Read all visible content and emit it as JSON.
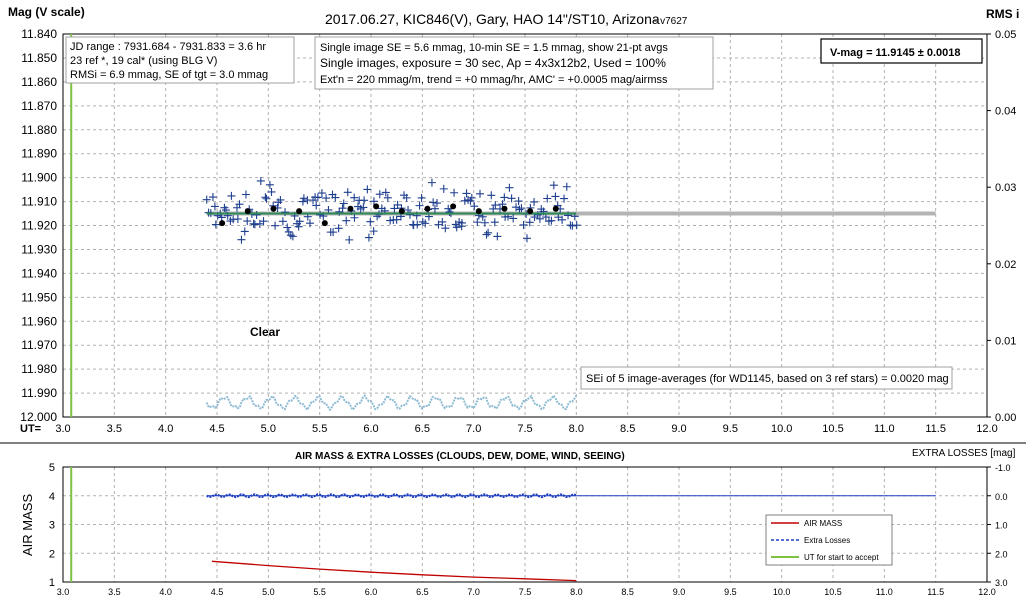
{
  "chart_data": [
    {
      "type": "scatter",
      "title": "2017.06.27,  KIC846(V),  Gary,  HAO  14\"/ST10, Arizona",
      "title_suffix": "- v7627",
      "ylabel": "Mag (V scale)",
      "y2label": "RMS i",
      "xlabel": "UT=",
      "xlim": [
        3.0,
        12.0
      ],
      "ylim": [
        11.84,
        12.0
      ],
      "y_inverted": true,
      "y2lim": [
        0.0,
        0.05
      ],
      "x_ticks": [
        "3.0",
        "3.5",
        "4.0",
        "4.5",
        "5.0",
        "5.5",
        "6.0",
        "6.5",
        "7.0",
        "7.5",
        "8.0",
        "8.5",
        "9.0",
        "9.5",
        "10.0",
        "10.5",
        "11.0",
        "11.5",
        "12.0"
      ],
      "y_ticks": [
        "11.840",
        "11.850",
        "11.860",
        "11.870",
        "11.880",
        "11.890",
        "11.900",
        "11.910",
        "11.920",
        "11.930",
        "11.940",
        "11.950",
        "11.960",
        "11.970",
        "11.980",
        "11.990",
        "12.000"
      ],
      "y2_ticks": [
        "0.00",
        "0.01",
        "0.02",
        "0.03",
        "0.04",
        "0.05"
      ],
      "grid": true,
      "colors": {
        "points": "#1f3f8f",
        "avg": "#000000",
        "fit": "#2e8b57",
        "ref": "#b4b4b4",
        "accept": "#7dc242",
        "rms": "#8fbcd4"
      },
      "accept_ut": 3.08,
      "reference_line": {
        "x": [
          4.4,
          11.5
        ],
        "y": 11.915
      },
      "fit_line": {
        "x": [
          4.4,
          8.0
        ],
        "y": 11.915
      },
      "averages": {
        "x": [
          4.55,
          4.8,
          5.05,
          5.3,
          5.55,
          5.8,
          6.05,
          6.3,
          6.55,
          6.8,
          7.05,
          7.3,
          7.55,
          7.8
        ],
        "y": [
          11.919,
          11.914,
          11.913,
          11.914,
          11.919,
          11.913,
          11.912,
          11.914,
          11.913,
          11.912,
          11.914,
          11.913,
          11.914,
          11.913
        ]
      },
      "points_range": {
        "x": [
          4.4,
          8.0
        ],
        "y_center": 11.915,
        "y_scatter": 0.015,
        "count": 190
      },
      "rms_range": {
        "x": [
          4.4,
          8.0
        ],
        "y_center": 11.994
      },
      "annotations": {
        "box1": [
          "JD range : 7931.684 - 7931.833 = 3.6 hr",
          "23 ref *, 19 cal* (using BLG V)",
          "RMSi = 6.9 mmag, SE of tgt = 3.0 mmag"
        ],
        "box2": [
          "Single image SE = 5.6 mmag, 10-min SE = 1.5 mmag, show 21-pt avgs",
          "Single images, exposure = 30 sec, Ap = 4x3x12b2, Used = 100%",
          "Ext'n = 220 mmag/m, trend = +0 mmag/hr, AMC' = +0.0005 mag/airmss"
        ],
        "vmag": "V-mag = 11.9145 ± 0.0018",
        "clear": "Clear",
        "sei": "SEi of 5 image-averages (for WD1145, based on 3 ref stars) = 0.0020 mag"
      }
    },
    {
      "type": "line",
      "title": "AIR MASS & EXTRA LOSSES (CLOUDS, DEW, DOME, WIND, SEEING)",
      "ylabel": "AIR MASS",
      "y2label": "EXTRA LOSSES [mag]",
      "xlim": [
        3.0,
        12.0
      ],
      "ylim": [
        1,
        5
      ],
      "y2lim": [
        -1.0,
        3.0
      ],
      "x_ticks": [
        "3.0",
        "3.5",
        "4.0",
        "4.5",
        "5.0",
        "5.5",
        "6.0",
        "6.5",
        "7.0",
        "7.5",
        "8.0",
        "8.5",
        "9.0",
        "9.5",
        "10.0",
        "10.5",
        "11.0",
        "11.5",
        "12.0"
      ],
      "y_ticks": [
        "1",
        "2",
        "3",
        "4",
        "5"
      ],
      "y2_ticks": [
        "-1.0",
        "0.0",
        "1.0",
        "2.0",
        "3.0"
      ],
      "grid": true,
      "legend_placement": "bottom-right",
      "series": [
        {
          "name": "AIR MASS",
          "color": "#c00000",
          "x": [
            4.45,
            5.0,
            5.5,
            6.0,
            6.5,
            7.0,
            7.5,
            8.0
          ],
          "y": [
            1.72,
            1.57,
            1.45,
            1.34,
            1.25,
            1.17,
            1.11,
            1.05
          ]
        },
        {
          "name": "Extra Losses",
          "color": "#1f3fbf",
          "x": [
            4.4,
            5.0,
            6.0,
            7.0,
            8.0,
            11.5
          ],
          "y": [
            0.0,
            0.0,
            0.0,
            0.0,
            0.0,
            0.0
          ]
        },
        {
          "name": "UT for start to accept",
          "color": "#7dc242",
          "x": [
            3.08,
            3.08
          ],
          "y": [
            1,
            5
          ]
        }
      ]
    }
  ]
}
